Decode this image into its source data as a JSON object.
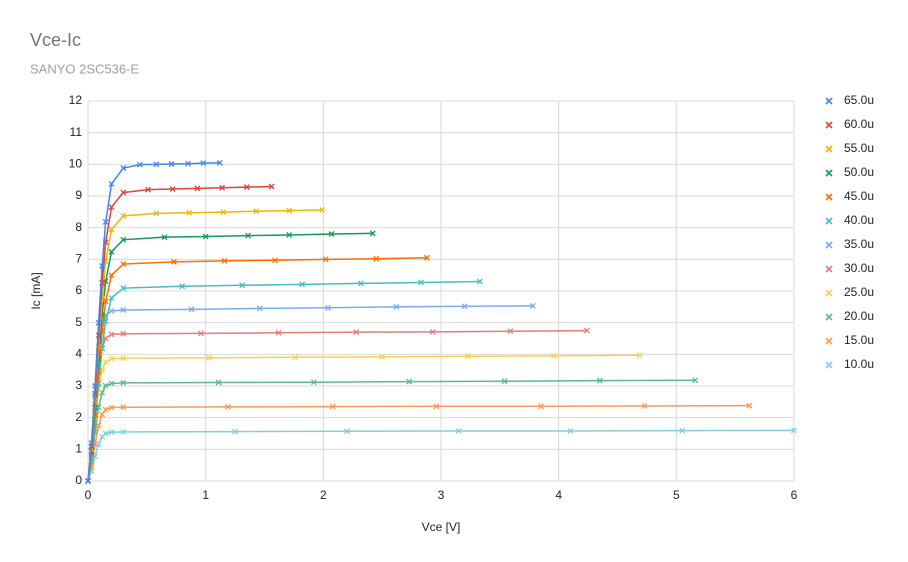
{
  "chart_data": {
    "type": "scatter",
    "title": "Vce-Ic",
    "subtitle": "SANYO 2SC536-E",
    "x_label": "Vce [V]",
    "y_label": "Ic [mA]",
    "xlim": [
      0,
      6
    ],
    "xticks": [
      0,
      1,
      2,
      3,
      4,
      5,
      6
    ],
    "ylim": [
      0,
      12
    ],
    "yticks": [
      0,
      1,
      2,
      3,
      4,
      5,
      6,
      7,
      8,
      9,
      10,
      11,
      12
    ],
    "grid": true,
    "legend": "right",
    "series": [
      {
        "name": "65.0u",
        "color": "#4285f4",
        "x": [
          0,
          0.03,
          0.06,
          0.09,
          0.12,
          0.15,
          0.2,
          0.3,
          0.44,
          0.58,
          0.71,
          0.85,
          0.98,
          1.12
        ],
        "values": [
          0,
          1.2,
          3.0,
          5.0,
          6.79,
          8.18,
          9.38,
          9.88,
          9.99,
          10.0,
          10.01,
          10.02,
          10.04,
          10.05
        ]
      },
      {
        "name": "60.0u",
        "color": "#db4437",
        "x": [
          0,
          0.03,
          0.06,
          0.09,
          0.12,
          0.15,
          0.2,
          0.3,
          0.51,
          0.72,
          0.93,
          1.14,
          1.35,
          1.56
        ],
        "values": [
          0,
          1.1,
          2.76,
          4.6,
          6.26,
          7.54,
          8.65,
          9.11,
          9.2,
          9.22,
          9.24,
          9.26,
          9.28,
          9.3
        ]
      },
      {
        "name": "55.0u",
        "color": "#f4b400",
        "x": [
          0,
          0.03,
          0.06,
          0.09,
          0.12,
          0.15,
          0.2,
          0.3,
          0.58,
          0.86,
          1.15,
          1.43,
          1.71,
          1.99
        ],
        "values": [
          0,
          1.01,
          2.54,
          4.23,
          5.75,
          6.93,
          7.94,
          8.37,
          8.45,
          8.47,
          8.49,
          8.52,
          8.54,
          8.56
        ]
      },
      {
        "name": "50.0u",
        "color": "#0f9d58",
        "x": [
          0,
          0.03,
          0.06,
          0.09,
          0.12,
          0.15,
          0.2,
          0.3,
          0.65,
          1.0,
          1.36,
          1.71,
          2.07,
          2.42
        ],
        "values": [
          0,
          0.92,
          2.31,
          3.85,
          5.24,
          6.31,
          7.24,
          7.62,
          7.7,
          7.72,
          7.75,
          7.77,
          7.8,
          7.82
        ]
      },
      {
        "name": "45.0u",
        "color": "#ff6d01",
        "x": [
          0,
          0.03,
          0.06,
          0.09,
          0.12,
          0.15,
          0.2,
          0.3,
          0.73,
          1.16,
          1.59,
          2.02,
          2.45,
          2.88
        ],
        "values": [
          0,
          0.83,
          2.08,
          3.46,
          4.71,
          5.67,
          6.5,
          6.85,
          6.92,
          6.95,
          6.97,
          7.0,
          7.02,
          7.05
        ]
      },
      {
        "name": "40.0u",
        "color": "#46bdc6",
        "x": [
          0,
          0.03,
          0.06,
          0.09,
          0.12,
          0.15,
          0.2,
          0.3,
          0.8,
          1.31,
          1.82,
          2.32,
          2.83,
          3.33
        ],
        "values": [
          0,
          0.74,
          1.85,
          3.08,
          4.18,
          5.04,
          5.78,
          6.09,
          6.15,
          6.18,
          6.21,
          6.24,
          6.27,
          6.3
        ]
      },
      {
        "name": "35.0u",
        "color": "#7baaf7",
        "x": [
          0,
          0.03,
          0.06,
          0.09,
          0.12,
          0.15,
          0.2,
          0.3,
          0.88,
          1.46,
          2.04,
          2.62,
          3.2,
          3.78
        ],
        "values": [
          0,
          1.08,
          2.7,
          4.05,
          4.86,
          5.24,
          5.37,
          5.4,
          5.42,
          5.45,
          5.47,
          5.5,
          5.52,
          5.53
        ]
      },
      {
        "name": "30.0u",
        "color": "#e67c73",
        "x": [
          0,
          0.03,
          0.06,
          0.09,
          0.12,
          0.15,
          0.2,
          0.3,
          0.96,
          1.62,
          2.28,
          2.93,
          3.59,
          4.24
        ],
        "values": [
          0,
          0.93,
          2.33,
          3.49,
          4.19,
          4.51,
          4.63,
          4.65,
          4.66,
          4.68,
          4.7,
          4.71,
          4.73,
          4.75
        ]
      },
      {
        "name": "25.0u",
        "color": "#fcd04f",
        "x": [
          0,
          0.03,
          0.06,
          0.09,
          0.12,
          0.15,
          0.2,
          0.3,
          1.03,
          1.76,
          2.5,
          3.23,
          3.96,
          4.69
        ],
        "values": [
          0,
          0.78,
          1.94,
          2.91,
          3.49,
          3.76,
          3.86,
          3.88,
          3.89,
          3.91,
          3.92,
          3.94,
          3.95,
          3.97
        ]
      },
      {
        "name": "20.0u",
        "color": "#57bb8a",
        "x": [
          0,
          0.03,
          0.06,
          0.09,
          0.12,
          0.15,
          0.2,
          0.3,
          1.11,
          1.92,
          2.73,
          3.54,
          4.35,
          5.16
        ],
        "values": [
          0,
          0.62,
          1.55,
          2.33,
          2.79,
          3.01,
          3.08,
          3.1,
          3.11,
          3.12,
          3.14,
          3.15,
          3.17,
          3.18
        ]
      },
      {
        "name": "15.0u",
        "color": "#ff994d",
        "x": [
          0,
          0.03,
          0.06,
          0.09,
          0.12,
          0.15,
          0.2,
          0.3,
          1.19,
          2.08,
          2.96,
          3.85,
          4.73,
          5.62
        ],
        "values": [
          0,
          0.47,
          1.17,
          1.75,
          2.1,
          2.26,
          2.32,
          2.33,
          2.34,
          2.35,
          2.36,
          2.36,
          2.37,
          2.38
        ]
      },
      {
        "name": "10.0u",
        "color": "#7ed1d7",
        "x": [
          0,
          0.03,
          0.06,
          0.09,
          0.12,
          0.15,
          0.2,
          0.3,
          1.25,
          2.2,
          3.15,
          4.1,
          5.05,
          6.0
        ],
        "values": [
          0,
          0.31,
          0.78,
          1.16,
          1.4,
          1.5,
          1.54,
          1.55,
          1.56,
          1.57,
          1.58,
          1.58,
          1.59,
          1.6
        ]
      }
    ]
  }
}
